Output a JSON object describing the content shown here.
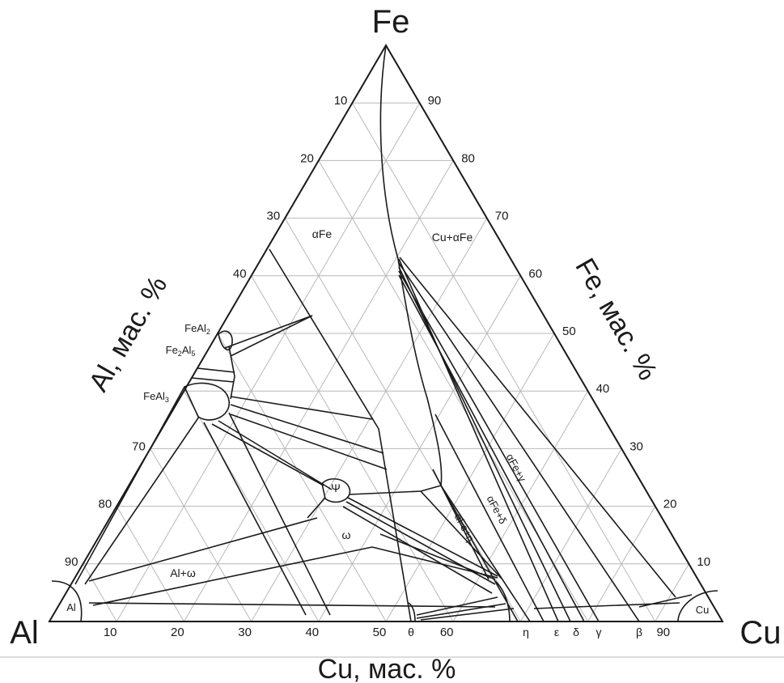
{
  "diagram": {
    "type": "ternary-phase-diagram",
    "vertices": {
      "top": "Fe",
      "left": "Al",
      "right": "Cu"
    },
    "axis_titles": {
      "left": "Al, мас. %",
      "right": "Fe, мас. %",
      "bottom": "Cu, мас. %"
    },
    "ticks": {
      "left": [
        "10",
        "20",
        "30",
        "40",
        "",
        "",
        "70",
        "80",
        "90"
      ],
      "right": [
        "90",
        "80",
        "70",
        "60",
        "50",
        "40",
        "30",
        "20",
        "10"
      ],
      "bottom": [
        "10",
        "20",
        "30",
        "40",
        "50",
        "60",
        "90"
      ]
    },
    "phase_labels": {
      "alpha_fe": "αFe",
      "cu_alpha_fe": "Cu+αFe",
      "feal2": "FeAl2",
      "fe2al5": "Fe2Al5",
      "feal3": "FeAl3",
      "psi": "Ψ",
      "omega": "ω",
      "al_omega": "Al+ω",
      "al": "Al",
      "cu": "Cu",
      "afe_gamma": "αFe+γ",
      "afe_delta": "αFe+δ",
      "afe_eta": "αFe+η"
    },
    "bottom_phase_labels": [
      "θ",
      "η",
      "ε",
      "δ",
      "γ",
      "β"
    ],
    "colors": {
      "line": "#1a1a1a",
      "grid": "#b4b4b4",
      "background": "#ffffff"
    }
  }
}
